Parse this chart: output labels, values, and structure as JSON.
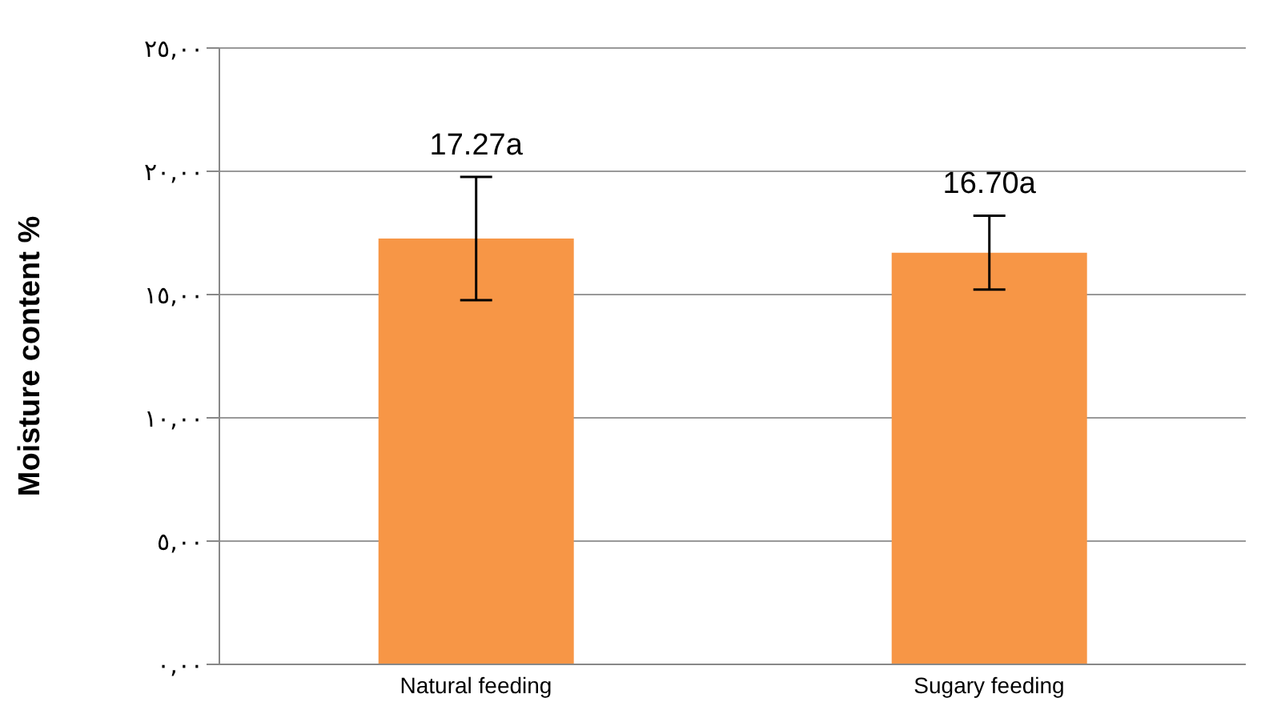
{
  "chart_data": {
    "type": "bar",
    "ylabel": "Moisture content  %",
    "categories": [
      "Natural feeding",
      "Sugary feeding"
    ],
    "values": [
      17.27,
      16.7
    ],
    "color": "#f79646",
    "errors": [
      2.5,
      1.5
    ],
    "value_labels": [
      "17.27a",
      "16.70a"
    ],
    "ylim": [
      0,
      25
    ],
    "yticks": [
      {
        "value": 0,
        "label": "٠,٠٠"
      },
      {
        "value": 5,
        "label": "٥,٠٠"
      },
      {
        "value": 10,
        "label": "١٠,٠٠"
      },
      {
        "value": 15,
        "label": "١٥,٠٠"
      },
      {
        "value": 20,
        "label": "٢٠,٠٠"
      },
      {
        "value": 25,
        "label": "٢٥,٠٠"
      }
    ],
    "grid": "y",
    "legend": false
  }
}
